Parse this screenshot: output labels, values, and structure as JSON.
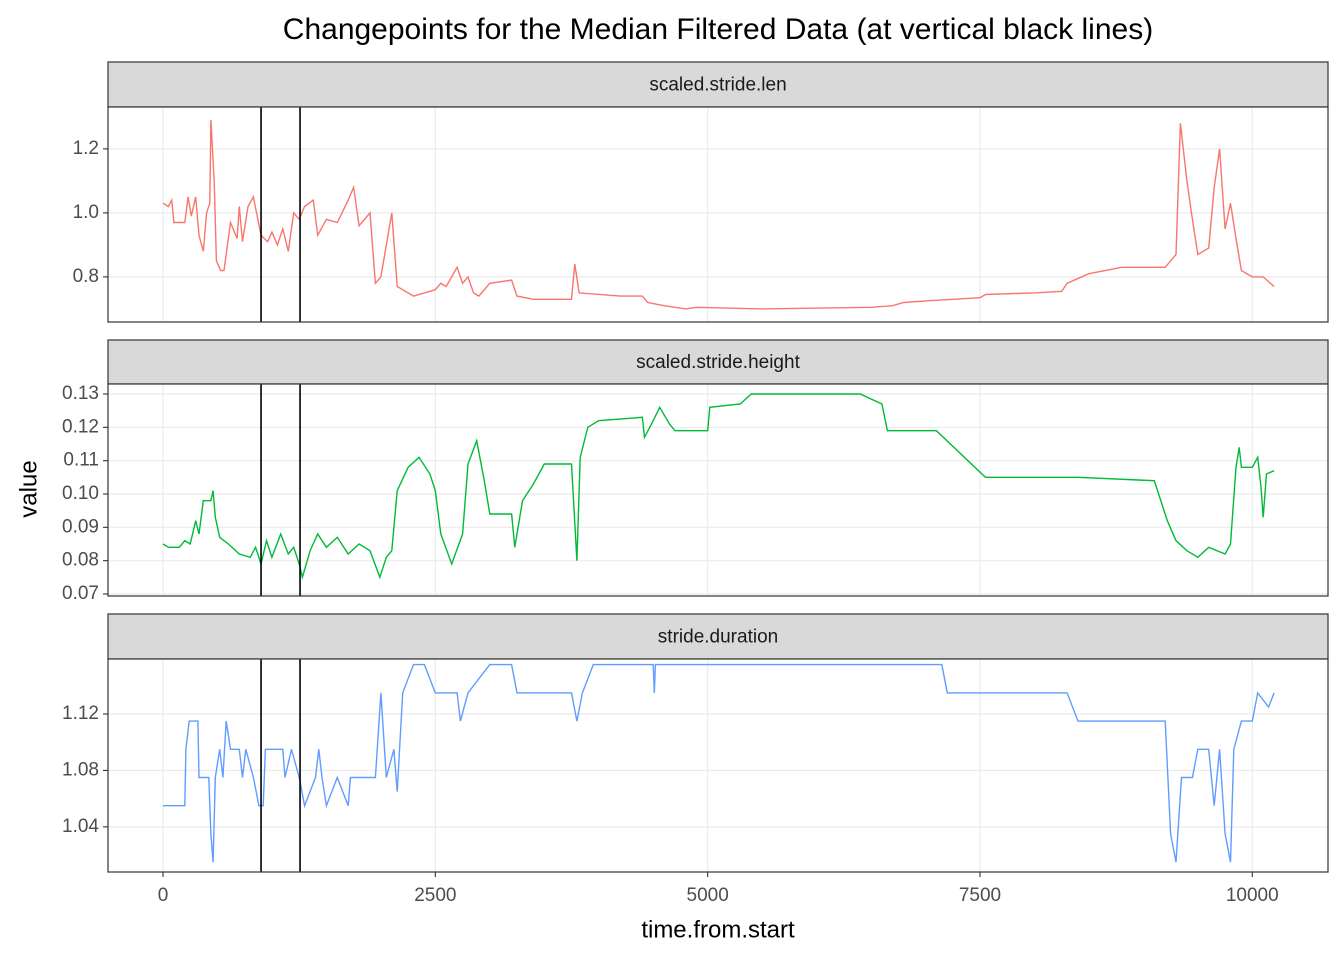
{
  "title": "Changepoints for the Median Filtered Data (at vertical black lines)",
  "x_label": "time.from.start",
  "y_label": "value",
  "chart_data": [
    {
      "type": "line",
      "title": "scaled.stride.len",
      "color": "#F8766D",
      "xlim": [
        -505,
        10695
      ],
      "xticks": [
        0,
        2500,
        5000,
        7500,
        10000
      ],
      "ylim": [
        0.659,
        1.331
      ],
      "yticks": [
        0.8,
        {
          "value": 1,
          "label": "1.0"
        },
        1.2
      ],
      "vlines": [
        900,
        1258
      ],
      "grid": true,
      "x": [
        0,
        50,
        80,
        100,
        200,
        230,
        260,
        300,
        330,
        370,
        400,
        430,
        440,
        470,
        490,
        530,
        560,
        620,
        680,
        700,
        730,
        780,
        830,
        900,
        960,
        1000,
        1050,
        1100,
        1150,
        1200,
        1250,
        1300,
        1380,
        1420,
        1500,
        1600,
        1700,
        1750,
        1800,
        1900,
        1950,
        2000,
        2100,
        2150,
        2300,
        2400,
        2500,
        2550,
        2600,
        2700,
        2750,
        2800,
        2850,
        2900,
        3000,
        3200,
        3250,
        3400,
        3750,
        3780,
        3820,
        4200,
        4400,
        4450,
        4600,
        4800,
        4900,
        5500,
        6500,
        6700,
        6800,
        7000,
        7500,
        7550,
        8000,
        8250,
        8300,
        8500,
        8800,
        9200,
        9300,
        9340,
        9400,
        9450,
        9500,
        9600,
        9650,
        9700,
        9750,
        9800,
        9850,
        9900,
        10000,
        10100,
        10200
      ],
      "values": [
        1.03,
        1.02,
        1.04,
        0.97,
        0.97,
        1.05,
        0.99,
        1.05,
        0.93,
        0.88,
        1.0,
        1.03,
        1.29,
        1.1,
        0.85,
        0.82,
        0.82,
        0.97,
        0.92,
        1.02,
        0.91,
        1.02,
        1.05,
        0.93,
        0.91,
        0.94,
        0.9,
        0.95,
        0.88,
        1.0,
        0.98,
        1.02,
        1.04,
        0.93,
        0.98,
        0.97,
        1.04,
        1.08,
        0.96,
        1.0,
        0.78,
        0.8,
        1.0,
        0.77,
        0.74,
        0.75,
        0.76,
        0.78,
        0.77,
        0.83,
        0.78,
        0.8,
        0.75,
        0.74,
        0.78,
        0.79,
        0.74,
        0.73,
        0.73,
        0.84,
        0.75,
        0.74,
        0.74,
        0.72,
        0.71,
        0.7,
        0.705,
        0.7,
        0.705,
        0.71,
        0.72,
        0.725,
        0.735,
        0.745,
        0.75,
        0.755,
        0.78,
        0.81,
        0.83,
        0.83,
        0.87,
        1.28,
        1.1,
        0.98,
        0.87,
        0.89,
        1.08,
        1.2,
        0.95,
        1.03,
        0.92,
        0.82,
        0.8,
        0.8,
        0.77
      ]
    },
    {
      "type": "line",
      "title": "scaled.stride.height",
      "color": "#00BA38",
      "xlim": [
        -505,
        10695
      ],
      "xticks": [
        0,
        2500,
        5000,
        7500,
        10000
      ],
      "ylim": [
        0.0694,
        0.133
      ],
      "yticks": [
        0.07,
        0.08,
        0.09,
        {
          "value": 0.1,
          "label": "0.10"
        },
        0.11,
        0.12,
        0.13
      ],
      "vlines": [
        900,
        1258
      ],
      "grid": true,
      "x": [
        0,
        50,
        150,
        200,
        250,
        300,
        330,
        370,
        440,
        460,
        480,
        520,
        600,
        700,
        800,
        850,
        900,
        950,
        1000,
        1080,
        1150,
        1200,
        1250,
        1280,
        1350,
        1420,
        1500,
        1600,
        1700,
        1800,
        1900,
        1990,
        2050,
        2100,
        2150,
        2250,
        2350,
        2450,
        2500,
        2550,
        2650,
        2750,
        2800,
        2880,
        2950,
        3000,
        3200,
        3230,
        3300,
        3400,
        3500,
        3750,
        3800,
        3830,
        3900,
        4000,
        4400,
        4420,
        4500,
        4560,
        4650,
        4700,
        5000,
        5020,
        5300,
        5400,
        6400,
        6600,
        6650,
        7100,
        7550,
        8300,
        8400,
        9100,
        9220,
        9300,
        9400,
        9500,
        9600,
        9750,
        9800,
        9850,
        9880,
        9900,
        10000,
        10050,
        10080,
        10100,
        10130,
        10200
      ],
      "values": [
        0.085,
        0.084,
        0.084,
        0.086,
        0.085,
        0.092,
        0.088,
        0.098,
        0.098,
        0.101,
        0.093,
        0.087,
        0.085,
        0.082,
        0.081,
        0.084,
        0.079,
        0.086,
        0.081,
        0.088,
        0.082,
        0.084,
        0.079,
        0.075,
        0.083,
        0.088,
        0.084,
        0.087,
        0.082,
        0.085,
        0.083,
        0.075,
        0.081,
        0.083,
        0.101,
        0.108,
        0.111,
        0.106,
        0.101,
        0.088,
        0.079,
        0.088,
        0.109,
        0.116,
        0.104,
        0.094,
        0.094,
        0.084,
        0.098,
        0.103,
        0.109,
        0.109,
        0.08,
        0.111,
        0.12,
        0.122,
        0.123,
        0.117,
        0.122,
        0.126,
        0.121,
        0.119,
        0.119,
        0.126,
        0.127,
        0.13,
        0.13,
        0.127,
        0.119,
        0.119,
        0.105,
        0.105,
        0.105,
        0.104,
        0.092,
        0.086,
        0.083,
        0.081,
        0.084,
        0.082,
        0.085,
        0.108,
        0.114,
        0.108,
        0.108,
        0.111,
        0.102,
        0.093,
        0.106,
        0.107
      ]
    },
    {
      "type": "line",
      "title": "stride.duration",
      "color": "#619CFF",
      "xlim": [
        -505,
        10695
      ],
      "xticks": [
        0,
        2500,
        5000,
        7500,
        10000
      ],
      "ylim": [
        1.008,
        1.159
      ],
      "yticks": [
        1.04,
        1.08,
        1.12
      ],
      "vlines": [
        900,
        1258
      ],
      "grid": true,
      "x": [
        0,
        200,
        210,
        240,
        320,
        330,
        420,
        440,
        460,
        480,
        520,
        550,
        580,
        620,
        700,
        730,
        760,
        830,
        880,
        920,
        940,
        1100,
        1120,
        1180,
        1250,
        1300,
        1400,
        1430,
        1460,
        1500,
        1600,
        1700,
        1720,
        1950,
        2000,
        2050,
        2120,
        2150,
        2200,
        2300,
        2400,
        2500,
        2700,
        2730,
        2800,
        2900,
        3000,
        3200,
        3250,
        3750,
        3800,
        3850,
        3950,
        4500,
        4510,
        4520,
        7150,
        7200,
        8300,
        8400,
        9200,
        9250,
        9300,
        9350,
        9450,
        9500,
        9600,
        9650,
        9700,
        9750,
        9800,
        9830,
        9900,
        10000,
        10050,
        10150,
        10200
      ],
      "values": [
        1.055,
        1.055,
        1.095,
        1.115,
        1.115,
        1.075,
        1.075,
        1.035,
        1.015,
        1.075,
        1.095,
        1.075,
        1.115,
        1.095,
        1.095,
        1.075,
        1.095,
        1.075,
        1.055,
        1.055,
        1.095,
        1.095,
        1.075,
        1.095,
        1.075,
        1.055,
        1.075,
        1.095,
        1.075,
        1.055,
        1.075,
        1.055,
        1.075,
        1.075,
        1.135,
        1.075,
        1.095,
        1.065,
        1.135,
        1.155,
        1.155,
        1.135,
        1.135,
        1.115,
        1.135,
        1.145,
        1.155,
        1.155,
        1.135,
        1.135,
        1.115,
        1.135,
        1.155,
        1.155,
        1.135,
        1.155,
        1.155,
        1.135,
        1.135,
        1.115,
        1.115,
        1.035,
        1.015,
        1.075,
        1.075,
        1.095,
        1.095,
        1.055,
        1.095,
        1.035,
        1.015,
        1.095,
        1.115,
        1.115,
        1.135,
        1.125,
        1.135
      ]
    }
  ]
}
